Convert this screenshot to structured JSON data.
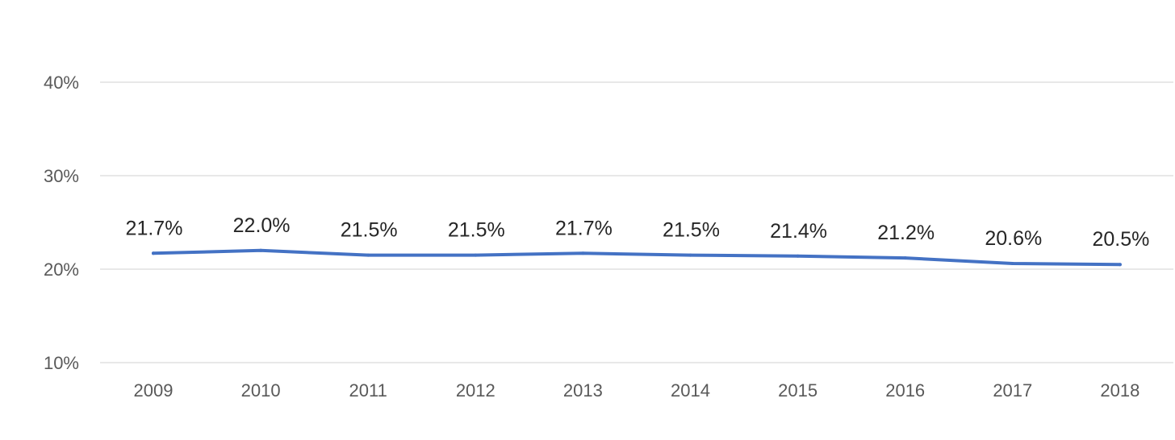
{
  "chart_data": {
    "type": "line",
    "title": "",
    "xlabel": "",
    "ylabel": "",
    "x": [
      "2009",
      "2010",
      "2011",
      "2012",
      "2013",
      "2014",
      "2015",
      "2016",
      "2017",
      "2018"
    ],
    "series": [
      {
        "values": [
          21.7,
          22.0,
          21.5,
          21.5,
          21.7,
          21.5,
          21.4,
          21.2,
          20.6,
          20.5
        ],
        "data_labels": [
          "21.7%",
          "22.0%",
          "21.5%",
          "21.5%",
          "21.7%",
          "21.5%",
          "21.4%",
          "21.2%",
          "20.6%",
          "20.5%"
        ],
        "color": "#4472c4"
      }
    ],
    "ylim": [
      10,
      40
    ],
    "y_ticks": [
      10,
      20,
      30,
      40
    ],
    "y_tick_labels": [
      "10%",
      "20%",
      "30%",
      "40%"
    ],
    "grid": true,
    "legend": "none"
  }
}
